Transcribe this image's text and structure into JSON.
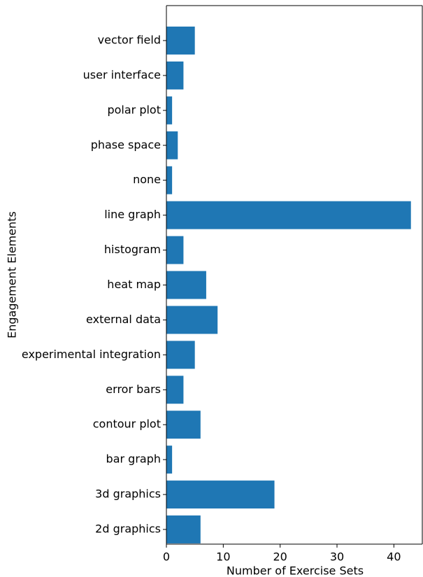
{
  "chart_data": {
    "type": "barh",
    "xlabel": "Number of Exercise Sets",
    "ylabel": "Engagement Elements",
    "categories": [
      "2d graphics",
      "3d graphics",
      "bar graph",
      "contour plot",
      "error bars",
      "experimental integration",
      "external data",
      "heat map",
      "histogram",
      "line graph",
      "none",
      "phase space",
      "polar plot",
      "user interface",
      "vector field"
    ],
    "values": [
      6,
      19,
      1,
      6,
      3,
      5,
      9,
      7,
      3,
      43,
      1,
      2,
      1,
      3,
      5
    ],
    "color": "#1f77b4",
    "xlim": [
      0,
      45
    ],
    "xticks": [
      0,
      10,
      20,
      30,
      40
    ],
    "grid": false
  }
}
